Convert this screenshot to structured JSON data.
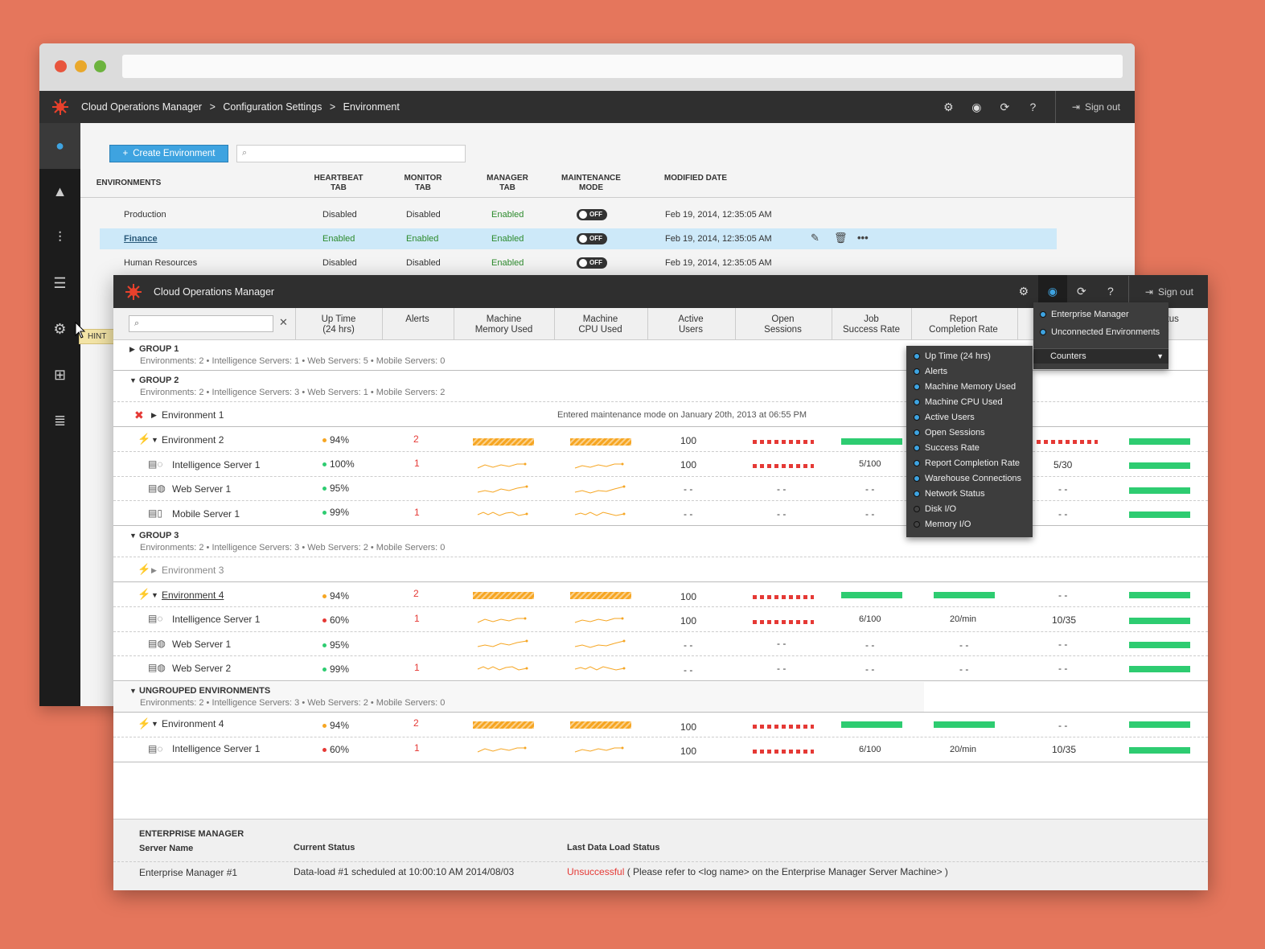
{
  "back": {
    "breadcrumb": [
      "Cloud Operations Manager",
      ">",
      "Configuration Settings",
      ">",
      "Environment"
    ],
    "signout": "Sign out",
    "hint": "HINT",
    "create_button": "Create Environment",
    "columns": {
      "environments": "ENVIRONMENTS",
      "heartbeat": "HEARTBEAT\nTAB",
      "monitor": "MONITOR\nTAB",
      "manager": "MANAGER\nTAB",
      "maintenance": "MAINTENANCE\nMODE",
      "modified": "MODIFIED DATE"
    },
    "rows": [
      {
        "name": "Production",
        "heartbeat": "Disabled",
        "monitor": "Disabled",
        "manager": "Enabled",
        "toggle": "OFF",
        "date": "Feb 19, 2014, 12:35:05 AM"
      },
      {
        "name": "Finance",
        "heartbeat": "Enabled",
        "monitor": "Enabled",
        "manager": "Enabled",
        "toggle": "OFF",
        "date": "Feb 19, 2014, 12:35:05 AM"
      },
      {
        "name": "Human Resources",
        "heartbeat": "Disabled",
        "monitor": "Disabled",
        "manager": "Enabled",
        "toggle": "OFF",
        "date": "Feb 19, 2014, 12:35:05 AM"
      }
    ]
  },
  "front": {
    "title": "Cloud Operations Manager",
    "signout": "Sign out",
    "columns": {
      "uptime": "Up Time\n(24 hrs)",
      "alerts": "Alerts",
      "memory": "Machine\nMemory Used",
      "cpu": "Machine\nCPU Used",
      "active": "Active\nUsers",
      "sessions": "Open\nSessions",
      "job": "Job\nSuccess Rate",
      "report": "Report\nCompletion Rate",
      "status_partial": "tatus\non"
    },
    "groups": {
      "g1": {
        "title": "GROUP 1",
        "sub": "Environments: 2  •  Intelligence Servers: 1  •  Web Servers: 5  •  Mobile Servers: 0"
      },
      "g2": {
        "title": "GROUP 2",
        "sub": "Environments: 2  •  Intelligence Servers: 3  •  Web Servers: 1  •  Mobile Servers: 2"
      },
      "g3": {
        "title": "GROUP 3",
        "sub": "Environments: 2  •  Intelligence Servers: 3  •  Web Servers: 2  •  Mobile Servers: 0"
      },
      "ug": {
        "title": "UNGROUPED ENVIRONMENTS",
        "sub": "Environments: 2  •  Intelligence Servers: 3  •  Web Servers: 2  •  Mobile Servers: 0"
      }
    },
    "env1": {
      "name": "Environment 1",
      "note": "Entered maintenance mode on January 20th, 2013 at 06:55 PM"
    },
    "env2": {
      "name": "Environment 2",
      "uptime": "94%",
      "alerts": "2",
      "active": "100"
    },
    "g2_is1": {
      "name": "Intelligence Server 1",
      "uptime": "100%",
      "alerts": "1",
      "active": "100",
      "job": "5/100",
      "col9": "5/30"
    },
    "g2_ws1": {
      "name": "Web Server 1",
      "uptime": "95%",
      "active": "- -",
      "sessions": "- -",
      "job": "- -",
      "col9": "- -"
    },
    "g2_ms1": {
      "name": "Mobile Server 1",
      "uptime": "99%",
      "alerts": "1",
      "active": "- -",
      "sessions": "- -",
      "job": "- -",
      "col9": "- -"
    },
    "env3": {
      "name": "Environment 3"
    },
    "env4": {
      "name": "Environment 4",
      "uptime": "94%",
      "alerts": "2",
      "active": "100",
      "col9": "- -"
    },
    "g3_is1": {
      "name": "Intelligence Server 1",
      "uptime": "60%",
      "alerts": "1",
      "active": "100",
      "job": "6/100",
      "report": "20/min",
      "col9": "10/35"
    },
    "g3_ws1": {
      "name": "Web Server 1",
      "uptime": "95%",
      "active": "- -",
      "sessions": "- -",
      "job": "- -",
      "report": "- -",
      "col9": "- -"
    },
    "g3_ws2": {
      "name": "Web Server 2",
      "uptime": "99%",
      "alerts": "1",
      "active": "- -",
      "sessions": "- -",
      "job": "- -",
      "report": "- -",
      "col9": "- -"
    },
    "ug_env4": {
      "name": "Environment 4",
      "uptime": "94%",
      "alerts": "2",
      "active": "100",
      "col9": "- -"
    },
    "ug_is1": {
      "name": "Intelligence Server 1",
      "uptime": "60%",
      "alerts": "1",
      "active": "100",
      "job": "6/100",
      "report": "20/min",
      "col9": "10/35"
    },
    "em": {
      "heading": "ENTERPRISE MANAGER",
      "col_server": "Server Name",
      "col_status": "Current Status",
      "col_last": "Last Data Load Status",
      "server": "Enterprise Manager #1",
      "status": "Data-load #1 scheduled at 10:00:10 AM 2014/08/03",
      "last_bad": "Unsuccessful",
      "last_rest": " ( Please refer to <log name> on the Enterprise Manager Server Machine> )"
    }
  },
  "view_menu": {
    "items": [
      "Enterprise Manager",
      "Unconnected Environments"
    ],
    "select": "Counters"
  },
  "counters_menu": {
    "items": [
      "Up Time (24 hrs)",
      "Alerts",
      "Machine Memory Used",
      "Machine CPU Used",
      "Active Users",
      "Open Sessions",
      "Success Rate",
      "Report Completion Rate",
      "Warehouse Connections",
      "Network Status",
      "Disk I/O",
      "Memory I/O"
    ],
    "checked": [
      true,
      true,
      true,
      true,
      true,
      true,
      true,
      true,
      true,
      true,
      false,
      false
    ]
  },
  "colors": {
    "accent": "#3ea3e0",
    "ok": "#2ecc71",
    "warn": "#f6a623",
    "error": "#e53935",
    "bg": "#e5765c"
  }
}
